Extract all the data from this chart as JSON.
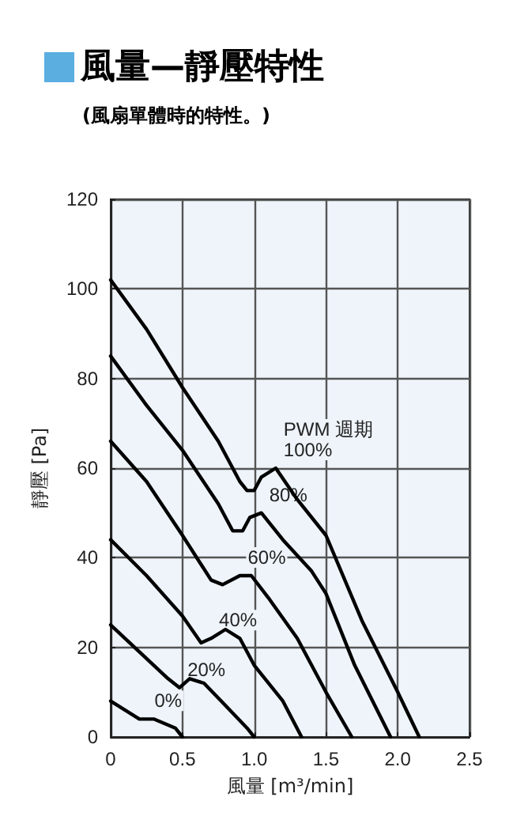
{
  "chart_data": {
    "type": "line",
    "title": "風量—靜壓特性",
    "subtitle": "(風扇單體時的特性。)",
    "xlabel": "風量 [m³/min]",
    "ylabel": "靜壓 [Pa]",
    "xlim": [
      0,
      2.5
    ],
    "xticks": [
      {
        "value": 0,
        "label": "0"
      },
      0.5,
      {
        "value": 1,
        "label": "1.0"
      },
      1.5,
      {
        "value": 2,
        "label": "2.0"
      },
      2.5
    ],
    "ylim": [
      0,
      120
    ],
    "yticks": [
      0,
      20,
      40,
      60,
      80,
      100,
      120
    ],
    "grid": true,
    "marker": "none",
    "line_style": "solid",
    "series": [
      {
        "color": "#000000",
        "x": [
          0,
          0.25,
          0.5,
          0.75,
          0.9,
          0.95,
          1.0,
          1.05,
          1.15,
          1.3,
          1.5,
          1.75,
          2.0,
          2.15
        ],
        "values": [
          102,
          91,
          78,
          66,
          57,
          55,
          55,
          58,
          60,
          53,
          45,
          26,
          10,
          0
        ]
      },
      {
        "color": "#000000",
        "x": [
          0,
          0.25,
          0.5,
          0.75,
          0.85,
          0.92,
          0.97,
          1.05,
          1.2,
          1.4,
          1.5,
          1.7,
          1.95
        ],
        "values": [
          85,
          74,
          64,
          52,
          46,
          46,
          49,
          50,
          44,
          37,
          32,
          16,
          0
        ]
      },
      {
        "color": "#000000",
        "x": [
          0,
          0.25,
          0.5,
          0.7,
          0.78,
          0.9,
          0.98,
          1.1,
          1.3,
          1.5,
          1.68
        ],
        "values": [
          66,
          57,
          45,
          35,
          34,
          36,
          36,
          31,
          22,
          10,
          0
        ]
      },
      {
        "color": "#000000",
        "x": [
          0,
          0.25,
          0.5,
          0.63,
          0.7,
          0.8,
          0.9,
          1.0,
          1.2,
          1.33
        ],
        "values": [
          44,
          36,
          27,
          21,
          22,
          24,
          22,
          16,
          8,
          0
        ]
      },
      {
        "color": "#000000",
        "x": [
          0,
          0.2,
          0.4,
          0.48,
          0.55,
          0.65,
          0.8,
          0.95,
          1.0
        ],
        "values": [
          25,
          19,
          13,
          11,
          13,
          12,
          7,
          2,
          0
        ]
      },
      {
        "color": "#000000",
        "x": [
          0,
          0.2,
          0.3,
          0.45,
          0.5
        ],
        "values": [
          8,
          4,
          4,
          2,
          0
        ]
      }
    ],
    "annotations": [
      {
        "text": "PWM 週期\n100%",
        "x": 1.15,
        "y": 60
      },
      {
        "text": "80%",
        "x": 1.05,
        "y": 50
      },
      {
        "text": "60%",
        "x": 0.9,
        "y": 36
      },
      {
        "text": "40%",
        "x": 0.7,
        "y": 22
      },
      {
        "text": "20%",
        "x": 0.48,
        "y": 11
      },
      {
        "text": "0%",
        "x": 0.25,
        "y": 4
      }
    ]
  }
}
